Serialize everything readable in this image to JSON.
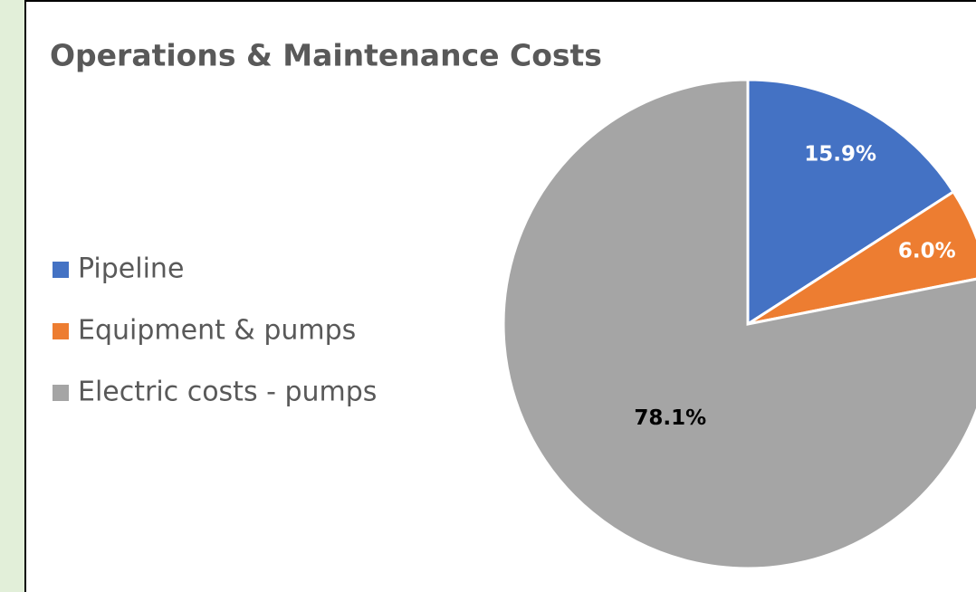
{
  "chart_data": {
    "type": "pie",
    "title": "Operations & Maintenance Costs",
    "categories": [
      "Pipeline",
      "Equipment & pumps",
      "Electric costs - pumps"
    ],
    "values": [
      15.9,
      6.0,
      78.1
    ],
    "value_labels": [
      "15.9%",
      "6.0%",
      "78.1%"
    ],
    "colors": [
      "#4472c4",
      "#ed7d31",
      "#a5a5a5"
    ],
    "legend": "left"
  }
}
